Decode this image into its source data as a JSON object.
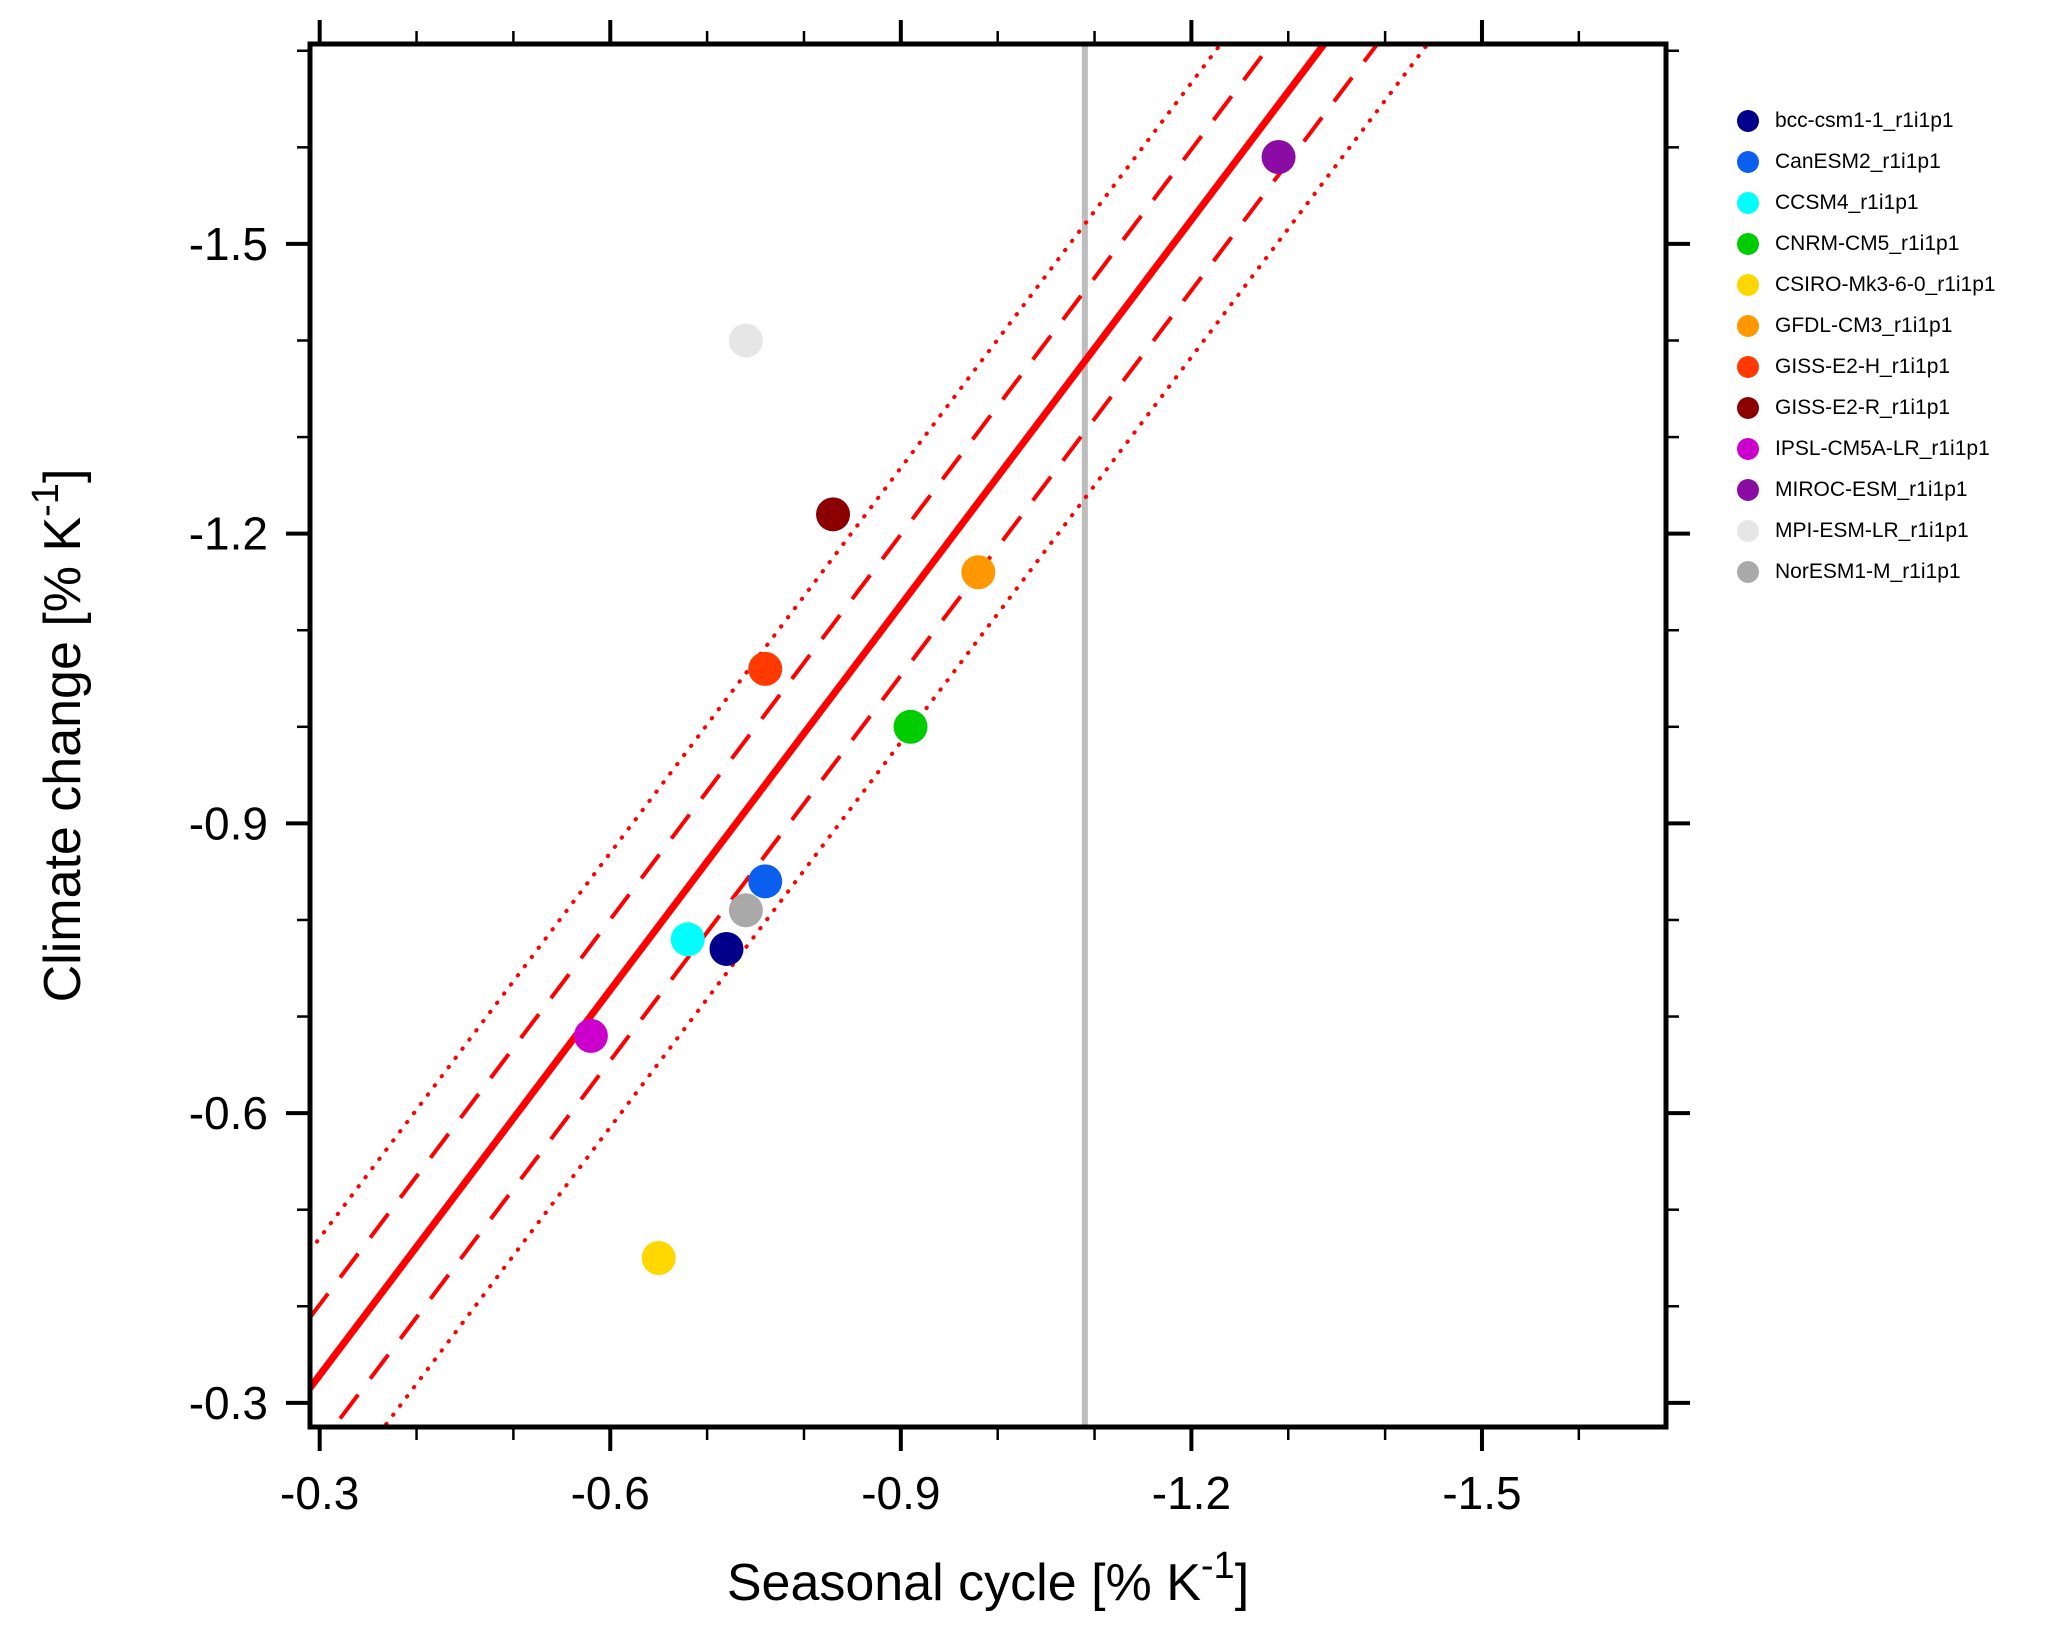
{
  "chart_data": {
    "type": "scatter",
    "title": "",
    "xlabel": {
      "main": "Seasonal cycle [% K",
      "sup": "-1",
      "close": "]"
    },
    "ylabel": {
      "main": "Climate change [% K",
      "sup": "-1",
      "close": "]"
    },
    "x_axis": {
      "range": [
        -0.29,
        -1.69
      ],
      "major_ticks": [
        -0.3,
        -0.6,
        -0.9,
        -1.2,
        -1.5
      ],
      "tick_labels": [
        "-0.3",
        "-0.6",
        "-0.9",
        "-1.2",
        "-1.5"
      ],
      "minor_tick_step": 0.1,
      "direction": "values more negative to the right"
    },
    "y_axis": {
      "range": [
        -0.275,
        -1.707
      ],
      "major_ticks": [
        -0.3,
        -0.6,
        -0.9,
        -1.2,
        -1.5
      ],
      "tick_labels": [
        "-0.3",
        "-0.6",
        "-0.9",
        "-1.2",
        "-1.5"
      ],
      "minor_tick_step": 0.1,
      "direction": "values more negative upward"
    },
    "series": [
      {
        "name": "bcc-csm1-1_r1i1p1",
        "color": "#00008B",
        "x": -0.72,
        "y": -0.77
      },
      {
        "name": "CanESM2_r1i1p1",
        "color": "#0A5FEF",
        "x": -0.76,
        "y": -0.84
      },
      {
        "name": "CCSM4_r1i1p1",
        "color": "#00FFFF",
        "x": -0.68,
        "y": -0.78
      },
      {
        "name": "CNRM-CM5_r1i1p1",
        "color": "#00CC00",
        "x": -0.91,
        "y": -1.0
      },
      {
        "name": "CSIRO-Mk3-6-0_r1i1p1",
        "color": "#FFD700",
        "x": -0.65,
        "y": -0.45
      },
      {
        "name": "GFDL-CM3_r1i1p1",
        "color": "#FF9800",
        "x": -0.98,
        "y": -1.16
      },
      {
        "name": "GISS-E2-H_r1i1p1",
        "color": "#FF3900",
        "x": -0.76,
        "y": -1.06
      },
      {
        "name": "GISS-E2-R_r1i1p1",
        "color": "#8B0000",
        "x": -0.83,
        "y": -1.22
      },
      {
        "name": "IPSL-CM5A-LR_r1i1p1",
        "color": "#CC00CC",
        "x": -0.58,
        "y": -0.68
      },
      {
        "name": "MIROC-ESM_r1i1p1",
        "color": "#8A0CA4",
        "x": -1.29,
        "y": -1.59
      },
      {
        "name": "MPI-ESM-LR_r1i1p1",
        "color": "#E6E6E6",
        "x": -0.74,
        "y": -1.4
      },
      {
        "name": "NorESM1-M_r1i1p1",
        "color": "#A9A9A9",
        "x": -0.74,
        "y": -0.81
      }
    ],
    "fit_line": {
      "slope": 1.329,
      "intercept": 0.07,
      "color": "#FF0000",
      "inner_band_offset": 0.073,
      "outer_band_offset": 0.142
    },
    "reference_line": {
      "x": -1.09,
      "color": "#BDBDBD"
    },
    "legend": {
      "position": "top-right-outside"
    },
    "style": {
      "marker_radius_px": 17,
      "frame_color": "#000000"
    }
  }
}
